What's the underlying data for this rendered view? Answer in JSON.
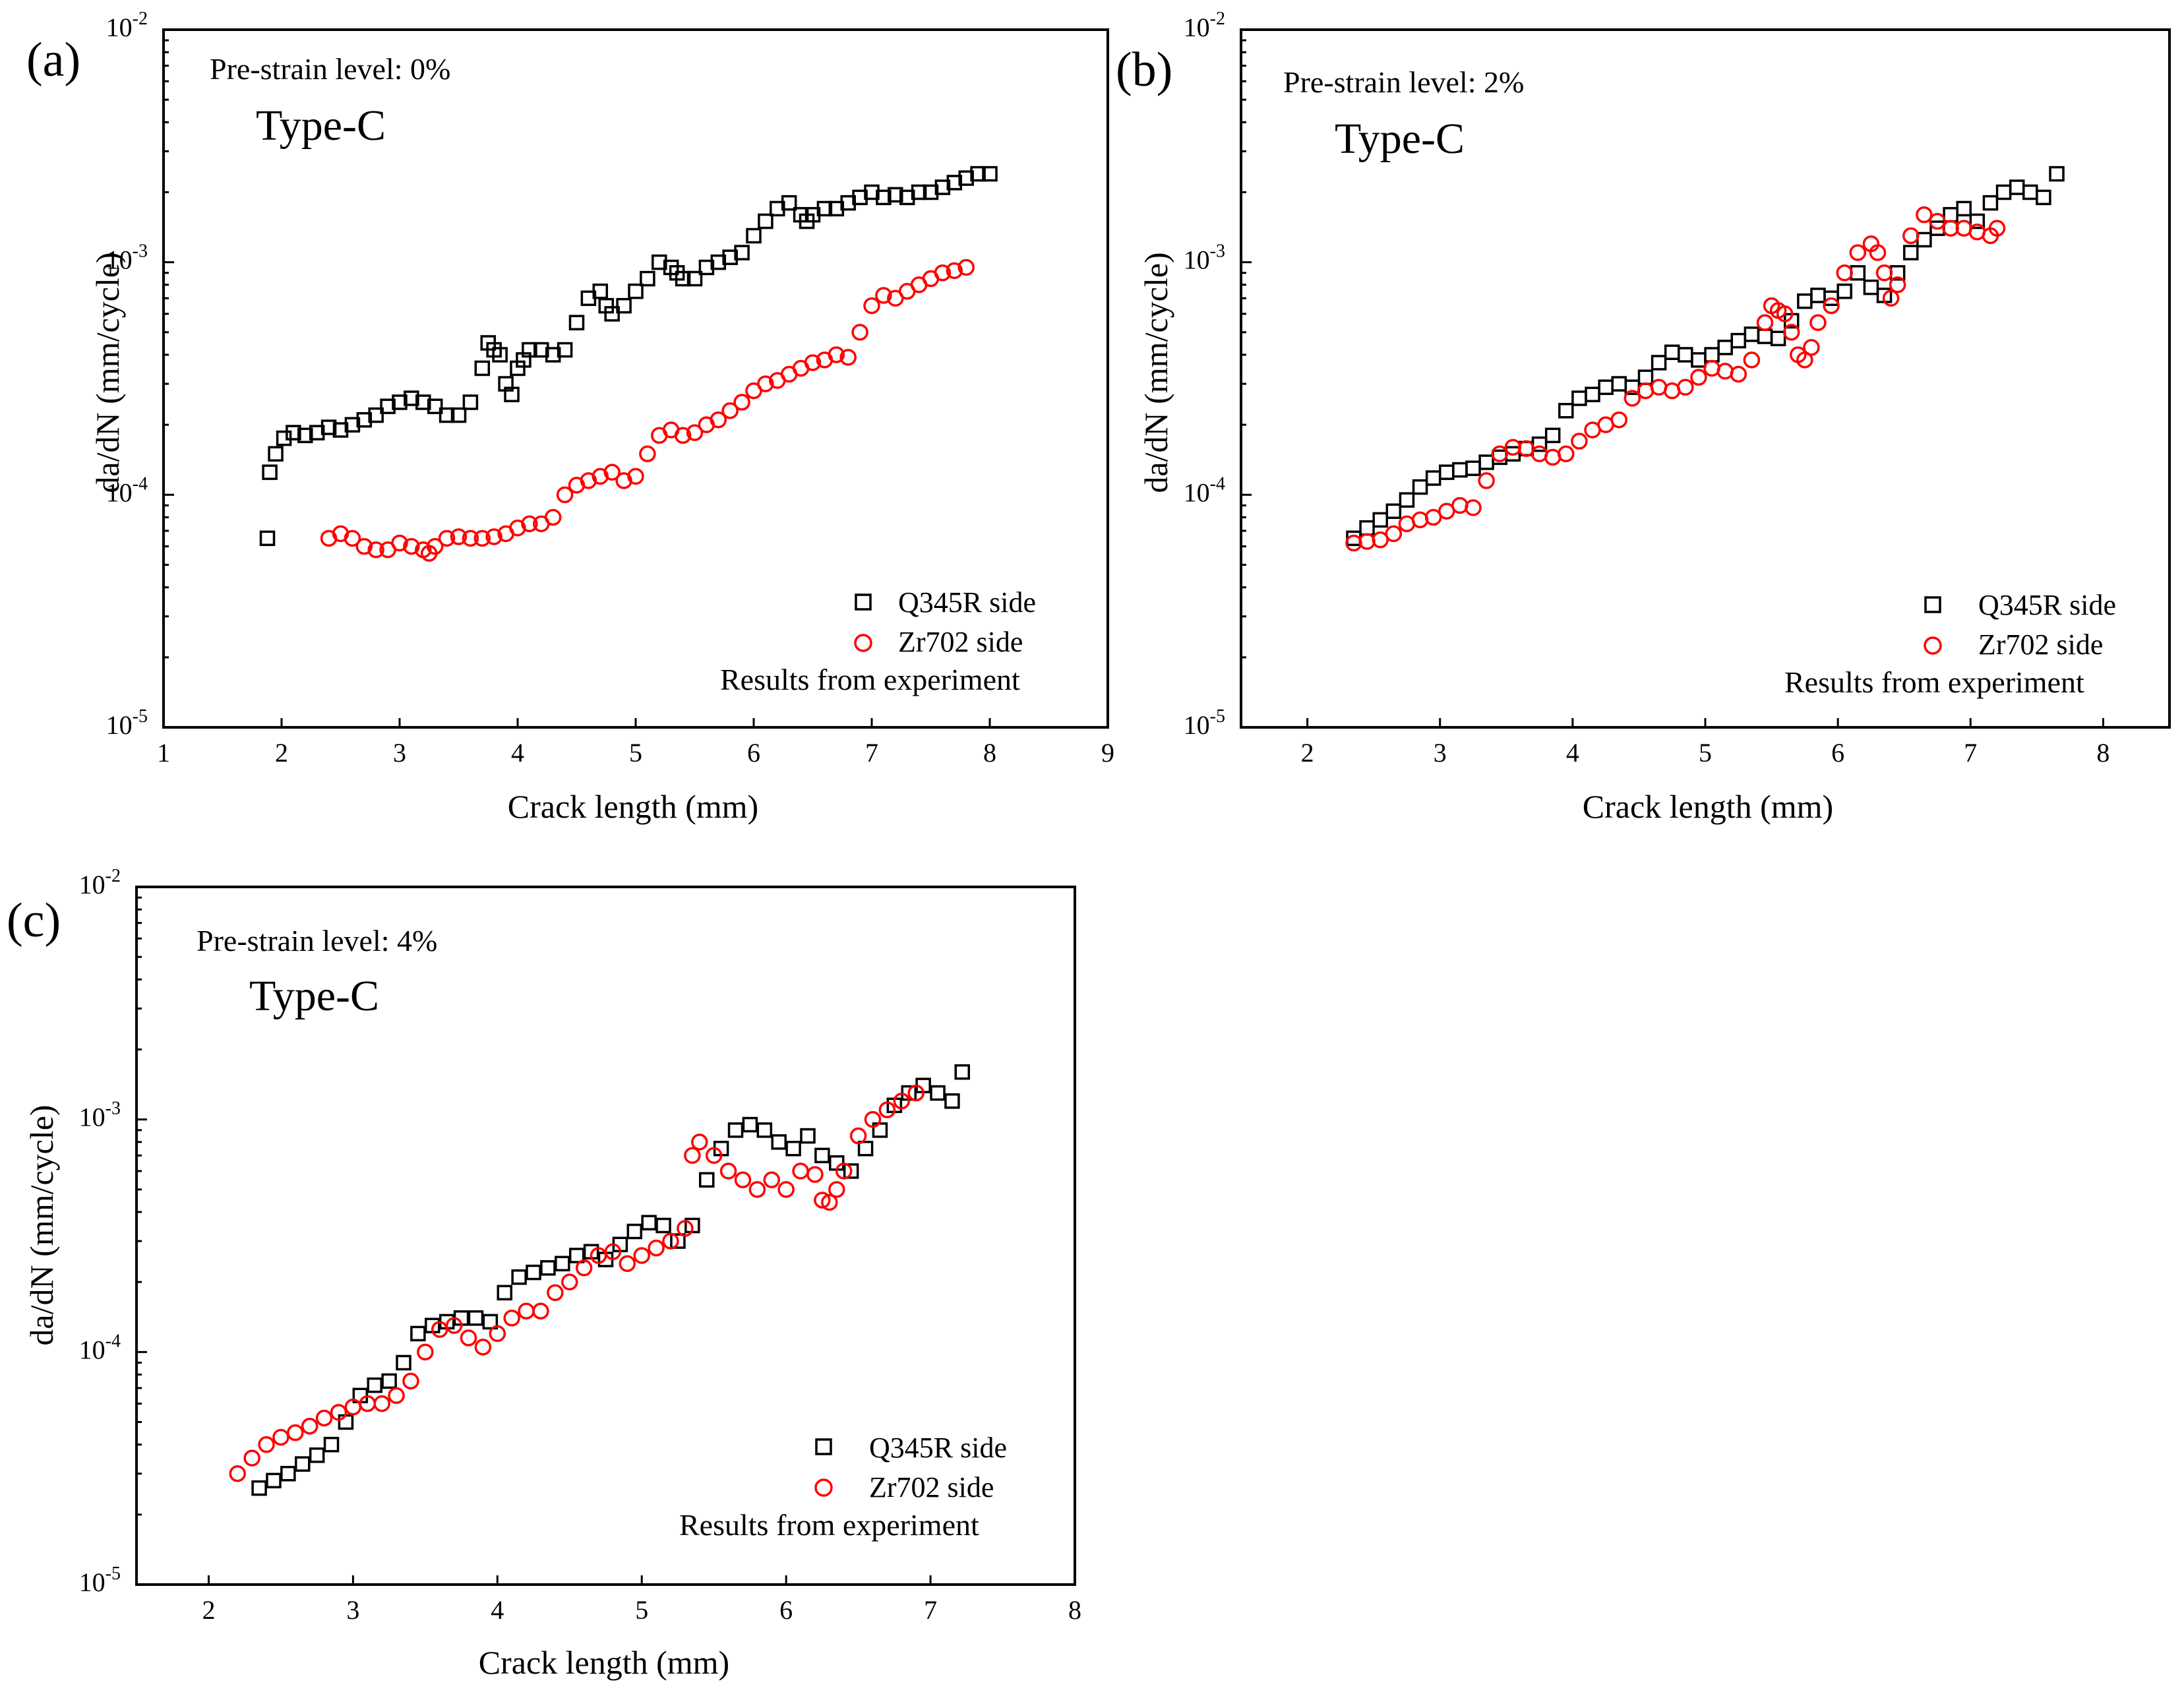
{
  "figure": {
    "panels": [
      {
        "tag": "(a)",
        "note": "Pre-strain level: 0%",
        "type_label": "Type-C",
        "legend": {
          "q345r": "Q345R side",
          "zr702": "Zr702 side",
          "source": "Results from experiment"
        }
      },
      {
        "tag": "(b)",
        "note": "Pre-strain level: 2%",
        "type_label": "Type-C",
        "legend": {
          "q345r": "Q345R side",
          "zr702": "Zr702 side",
          "source": "Results from experiment"
        }
      },
      {
        "tag": "(c)",
        "note": "Pre-strain level: 4%",
        "type_label": "Type-C",
        "legend": {
          "q345r": "Q345R side",
          "zr702": "Zr702 side",
          "source": "Results from experiment"
        }
      }
    ],
    "colors": {
      "q345r": "#000000",
      "zr702": "#ff0000"
    },
    "markers": {
      "q345r": "open-square",
      "zr702": "open-circle"
    }
  },
  "chart_data": [
    {
      "type": "scatter",
      "xlabel": "Crack length (mm)",
      "ylabel": "da/dN (mm/cycle)",
      "xlim": [
        1,
        9
      ],
      "xticks": [
        1,
        2,
        3,
        4,
        5,
        6,
        7,
        8,
        9
      ],
      "ylim": [
        1e-05,
        0.01
      ],
      "yscale": "log",
      "yticks": [
        "10^-5",
        "10^-4",
        "10^-3",
        "10^-2"
      ],
      "legend_position": "bottom-right",
      "series": [
        {
          "name": "Q345R side",
          "x": [
            1.88,
            1.9,
            1.95,
            2.02,
            2.1,
            2.2,
            2.3,
            2.4,
            2.5,
            2.6,
            2.7,
            2.8,
            2.9,
            3.0,
            3.1,
            3.2,
            3.3,
            3.4,
            3.5,
            3.6,
            3.7,
            3.75,
            3.8,
            3.85,
            3.9,
            3.95,
            4.0,
            4.05,
            4.1,
            4.2,
            4.3,
            4.4,
            4.5,
            4.6,
            4.7,
            4.75,
            4.8,
            4.9,
            5.0,
            5.1,
            5.2,
            5.3,
            5.35,
            5.4,
            5.5,
            5.6,
            5.7,
            5.8,
            5.9,
            6.0,
            6.1,
            6.2,
            6.3,
            6.4,
            6.45,
            6.5,
            6.6,
            6.7,
            6.8,
            6.9,
            7.0,
            7.1,
            7.2,
            7.3,
            7.4,
            7.5,
            7.6,
            7.7,
            7.8,
            7.9,
            8.0
          ],
          "y": [
            6.5e-05,
            0.000125,
            0.00015,
            0.000175,
            0.000185,
            0.00018,
            0.000185,
            0.000195,
            0.00019,
            0.0002,
            0.00021,
            0.00022,
            0.00024,
            0.00025,
            0.00026,
            0.00025,
            0.00024,
            0.00022,
            0.00022,
            0.00025,
            0.00035,
            0.00045,
            0.00042,
            0.0004,
            0.0003,
            0.00027,
            0.00035,
            0.00038,
            0.00042,
            0.00042,
            0.0004,
            0.00042,
            0.00055,
            0.0007,
            0.00075,
            0.00065,
            0.0006,
            0.00065,
            0.00075,
            0.00085,
            0.001,
            0.00095,
            0.0009,
            0.00085,
            0.00085,
            0.00095,
            0.001,
            0.00105,
            0.0011,
            0.0013,
            0.0015,
            0.0017,
            0.0018,
            0.0016,
            0.0015,
            0.0016,
            0.0017,
            0.0017,
            0.0018,
            0.0019,
            0.002,
            0.0019,
            0.00195,
            0.0019,
            0.002,
            0.002,
            0.0021,
            0.0022,
            0.0023,
            0.0024,
            0.0024
          ]
        },
        {
          "name": "Zr702 side",
          "x": [
            2.4,
            2.5,
            2.6,
            2.7,
            2.8,
            2.9,
            3.0,
            3.1,
            3.2,
            3.25,
            3.3,
            3.4,
            3.5,
            3.6,
            3.7,
            3.8,
            3.9,
            4.0,
            4.1,
            4.2,
            4.3,
            4.4,
            4.5,
            4.6,
            4.7,
            4.8,
            4.9,
            5.0,
            5.1,
            5.2,
            5.3,
            5.4,
            5.5,
            5.6,
            5.7,
            5.8,
            5.9,
            6.0,
            6.1,
            6.2,
            6.3,
            6.4,
            6.5,
            6.6,
            6.7,
            6.8,
            6.9,
            7.0,
            7.1,
            7.2,
            7.3,
            7.4,
            7.5,
            7.6,
            7.7,
            7.8
          ],
          "y": [
            6.5e-05,
            6.8e-05,
            6.5e-05,
            6e-05,
            5.8e-05,
            5.8e-05,
            6.2e-05,
            6e-05,
            5.8e-05,
            5.6e-05,
            6e-05,
            6.5e-05,
            6.6e-05,
            6.5e-05,
            6.5e-05,
            6.6e-05,
            6.8e-05,
            7.2e-05,
            7.5e-05,
            7.5e-05,
            8e-05,
            0.0001,
            0.00011,
            0.000115,
            0.00012,
            0.000125,
            0.000115,
            0.00012,
            0.00015,
            0.00018,
            0.00019,
            0.00018,
            0.000185,
            0.0002,
            0.00021,
            0.00023,
            0.00025,
            0.00028,
            0.0003,
            0.00031,
            0.00033,
            0.00035,
            0.00037,
            0.00038,
            0.0004,
            0.00039,
            0.0005,
            0.00065,
            0.00072,
            0.0007,
            0.00075,
            0.0008,
            0.00085,
            0.0009,
            0.00092,
            0.00095
          ]
        }
      ]
    },
    {
      "type": "scatter",
      "xlabel": "Crack length (mm)",
      "ylabel": "da/dN (mm/cycle)",
      "xlim": [
        1.5,
        8.5
      ],
      "xticks": [
        2,
        3,
        4,
        5,
        6,
        7,
        8
      ],
      "ylim": [
        1e-05,
        0.01
      ],
      "yscale": "log",
      "yticks": [
        "10^-5",
        "10^-4",
        "10^-3",
        "10^-2"
      ],
      "legend_position": "bottom-right",
      "series": [
        {
          "name": "Q345R side",
          "x": [
            2.35,
            2.45,
            2.55,
            2.65,
            2.75,
            2.85,
            2.95,
            3.05,
            3.15,
            3.25,
            3.35,
            3.45,
            3.55,
            3.65,
            3.75,
            3.85,
            3.95,
            4.05,
            4.15,
            4.25,
            4.35,
            4.45,
            4.55,
            4.65,
            4.75,
            4.85,
            4.95,
            5.05,
            5.15,
            5.25,
            5.35,
            5.45,
            5.55,
            5.65,
            5.75,
            5.85,
            5.95,
            6.05,
            6.15,
            6.25,
            6.35,
            6.45,
            6.55,
            6.65,
            6.75,
            6.85,
            6.95,
            7.05,
            7.15,
            7.25,
            7.35,
            7.45,
            7.55,
            7.65
          ],
          "y": [
            6.5e-05,
            7.2e-05,
            7.8e-05,
            8.5e-05,
            9.5e-05,
            0.000108,
            0.000118,
            0.000125,
            0.000128,
            0.00013,
            0.000138,
            0.000145,
            0.00015,
            0.000158,
            0.000165,
            0.00018,
            0.00023,
            0.00026,
            0.00027,
            0.00029,
            0.0003,
            0.00029,
            0.00032,
            0.00037,
            0.00041,
            0.0004,
            0.00038,
            0.0004,
            0.00043,
            0.00046,
            0.00049,
            0.00048,
            0.00047,
            0.00056,
            0.00068,
            0.00072,
            0.0007,
            0.00075,
            0.0009,
            0.00078,
            0.00072,
            0.0009,
            0.0011,
            0.00125,
            0.0014,
            0.0016,
            0.0017,
            0.0015,
            0.0018,
            0.002,
            0.0021,
            0.002,
            0.0019,
            0.0024
          ]
        },
        {
          "name": "Zr702 side",
          "x": [
            2.35,
            2.45,
            2.55,
            2.65,
            2.75,
            2.85,
            2.95,
            3.05,
            3.15,
            3.25,
            3.35,
            3.45,
            3.55,
            3.65,
            3.75,
            3.85,
            3.95,
            4.05,
            4.15,
            4.25,
            4.35,
            4.45,
            4.55,
            4.65,
            4.75,
            4.85,
            4.95,
            5.05,
            5.15,
            5.25,
            5.35,
            5.45,
            5.5,
            5.55,
            5.6,
            5.65,
            5.7,
            5.75,
            5.8,
            5.85,
            5.95,
            6.05,
            6.15,
            6.25,
            6.3,
            6.35,
            6.4,
            6.45,
            6.55,
            6.65,
            6.75,
            6.85,
            6.95,
            7.05,
            7.15,
            7.2
          ],
          "y": [
            6.2e-05,
            6.3e-05,
            6.4e-05,
            6.8e-05,
            7.5e-05,
            7.8e-05,
            8e-05,
            8.5e-05,
            9e-05,
            8.8e-05,
            0.000115,
            0.00015,
            0.00016,
            0.000158,
            0.00015,
            0.000145,
            0.00015,
            0.00017,
            0.00019,
            0.0002,
            0.00021,
            0.00026,
            0.00028,
            0.00029,
            0.00028,
            0.00029,
            0.00032,
            0.00035,
            0.00034,
            0.00033,
            0.00038,
            0.00055,
            0.00065,
            0.00062,
            0.0006,
            0.0005,
            0.0004,
            0.00038,
            0.00043,
            0.00055,
            0.00065,
            0.0009,
            0.0011,
            0.0012,
            0.0011,
            0.0009,
            0.0007,
            0.0008,
            0.0013,
            0.0016,
            0.0015,
            0.0014,
            0.0014,
            0.00135,
            0.0013,
            0.0014
          ]
        }
      ]
    },
    {
      "type": "scatter",
      "xlabel": "Crack length (mm)",
      "ylabel": "da/dN (mm/cycle)",
      "xlim": [
        1.5,
        8
      ],
      "xticks": [
        2,
        3,
        4,
        5,
        6,
        7,
        8
      ],
      "ylim": [
        1e-05,
        0.01
      ],
      "yscale": "log",
      "yticks": [
        "10^-5",
        "10^-4",
        "10^-3",
        "10^-2"
      ],
      "legend_position": "bottom-right",
      "series": [
        {
          "name": "Q345R side",
          "x": [
            2.35,
            2.45,
            2.55,
            2.65,
            2.75,
            2.85,
            2.95,
            3.05,
            3.15,
            3.25,
            3.35,
            3.45,
            3.55,
            3.65,
            3.75,
            3.85,
            3.95,
            4.05,
            4.15,
            4.25,
            4.35,
            4.45,
            4.55,
            4.65,
            4.75,
            4.85,
            4.95,
            5.05,
            5.15,
            5.25,
            5.35,
            5.45,
            5.55,
            5.65,
            5.75,
            5.85,
            5.95,
            6.05,
            6.15,
            6.25,
            6.35,
            6.45,
            6.55,
            6.65,
            6.75,
            6.85,
            6.95,
            7.05,
            7.15,
            7.22
          ],
          "y": [
            2.6e-05,
            2.8e-05,
            3e-05,
            3.3e-05,
            3.6e-05,
            4e-05,
            5e-05,
            6.5e-05,
            7.2e-05,
            7.5e-05,
            9e-05,
            0.00012,
            0.00013,
            0.000135,
            0.00014,
            0.00014,
            0.000135,
            0.00018,
            0.00021,
            0.00022,
            0.00023,
            0.00024,
            0.00026,
            0.00027,
            0.00025,
            0.00029,
            0.00033,
            0.00036,
            0.00035,
            0.0003,
            0.00035,
            0.00055,
            0.00075,
            0.0009,
            0.00095,
            0.0009,
            0.0008,
            0.00075,
            0.00085,
            0.0007,
            0.00065,
            0.0006,
            0.00075,
            0.0009,
            0.00115,
            0.0013,
            0.0014,
            0.0013,
            0.0012,
            0.0016
          ]
        },
        {
          "name": "Zr702 side",
          "x": [
            2.2,
            2.3,
            2.4,
            2.5,
            2.6,
            2.7,
            2.8,
            2.9,
            3.0,
            3.1,
            3.2,
            3.3,
            3.4,
            3.5,
            3.6,
            3.7,
            3.8,
            3.9,
            4.0,
            4.1,
            4.2,
            4.3,
            4.4,
            4.5,
            4.6,
            4.7,
            4.8,
            4.9,
            5.0,
            5.1,
            5.2,
            5.3,
            5.35,
            5.4,
            5.5,
            5.6,
            5.7,
            5.8,
            5.9,
            6.0,
            6.1,
            6.2,
            6.25,
            6.3,
            6.35,
            6.4,
            6.5,
            6.6,
            6.7,
            6.8,
            6.9
          ],
          "y": [
            3e-05,
            3.5e-05,
            4e-05,
            4.3e-05,
            4.5e-05,
            4.8e-05,
            5.2e-05,
            5.5e-05,
            5.8e-05,
            6e-05,
            6e-05,
            6.5e-05,
            7.5e-05,
            0.0001,
            0.000125,
            0.00013,
            0.000115,
            0.000105,
            0.00012,
            0.00014,
            0.00015,
            0.00015,
            0.00018,
            0.0002,
            0.00023,
            0.00026,
            0.00027,
            0.00024,
            0.00026,
            0.00028,
            0.0003,
            0.00034,
            0.0007,
            0.0008,
            0.0007,
            0.0006,
            0.00055,
            0.0005,
            0.00055,
            0.0005,
            0.0006,
            0.00058,
            0.00045,
            0.00044,
            0.0005,
            0.0006,
            0.00085,
            0.001,
            0.0011,
            0.0012,
            0.0013
          ]
        }
      ]
    }
  ]
}
